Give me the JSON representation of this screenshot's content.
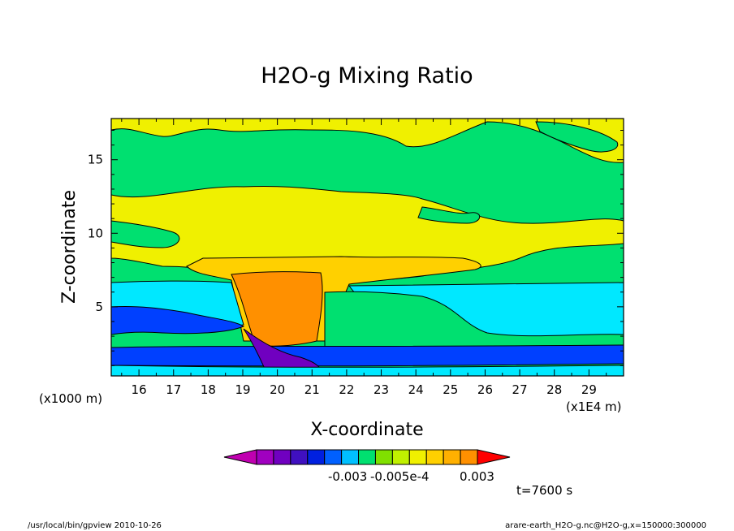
{
  "chart_data": {
    "type": "heatmap",
    "title": "H2O-g Mixing Ratio",
    "xlabel": "X-coordinate",
    "ylabel": "Z-coordinate",
    "x_unit_label": "(x1E4 m)",
    "y_unit_label": "(x1000 m)",
    "xlim": [
      15.2,
      30.0
    ],
    "ylim": [
      0.3,
      17.8
    ],
    "x_ticks": [
      "16",
      "17",
      "18",
      "19",
      "20",
      "21",
      "22",
      "23",
      "24",
      "25",
      "26",
      "27",
      "28",
      "29"
    ],
    "y_ticks": [
      "5",
      "10",
      "15"
    ],
    "colorbar_labels": [
      "-0.003",
      "-0.005e-4",
      "0.003"
    ],
    "colorbar_colors": [
      "#c000b0",
      "#a000c0",
      "#7000c0",
      "#4010c0",
      "#0020e0",
      "#0060ff",
      "#00c0ff",
      "#00e070",
      "#80e000",
      "#c0f000",
      "#f0f000",
      "#ffd000",
      "#ffb000",
      "#ff9000",
      "#ff0000"
    ],
    "time_label": "t=7600 s",
    "footer_left": "/usr/local/bin/gpview  2010-10-26",
    "footer_right": "arare-earth_H2O-g.nc@H2O-g,x=150000:300000",
    "regions": [
      {
        "name": "green-background",
        "color": "#00e070"
      },
      {
        "name": "yellow-upper",
        "color": "#f0f000"
      },
      {
        "name": "gold-anvil",
        "color": "#ffd000"
      },
      {
        "name": "orange-core",
        "color": "#ff9000"
      },
      {
        "name": "cyan-layer",
        "color": "#00e8ff"
      },
      {
        "name": "blue-band",
        "color": "#0040ff"
      },
      {
        "name": "purple-downdraft",
        "color": "#7000c0"
      }
    ]
  }
}
